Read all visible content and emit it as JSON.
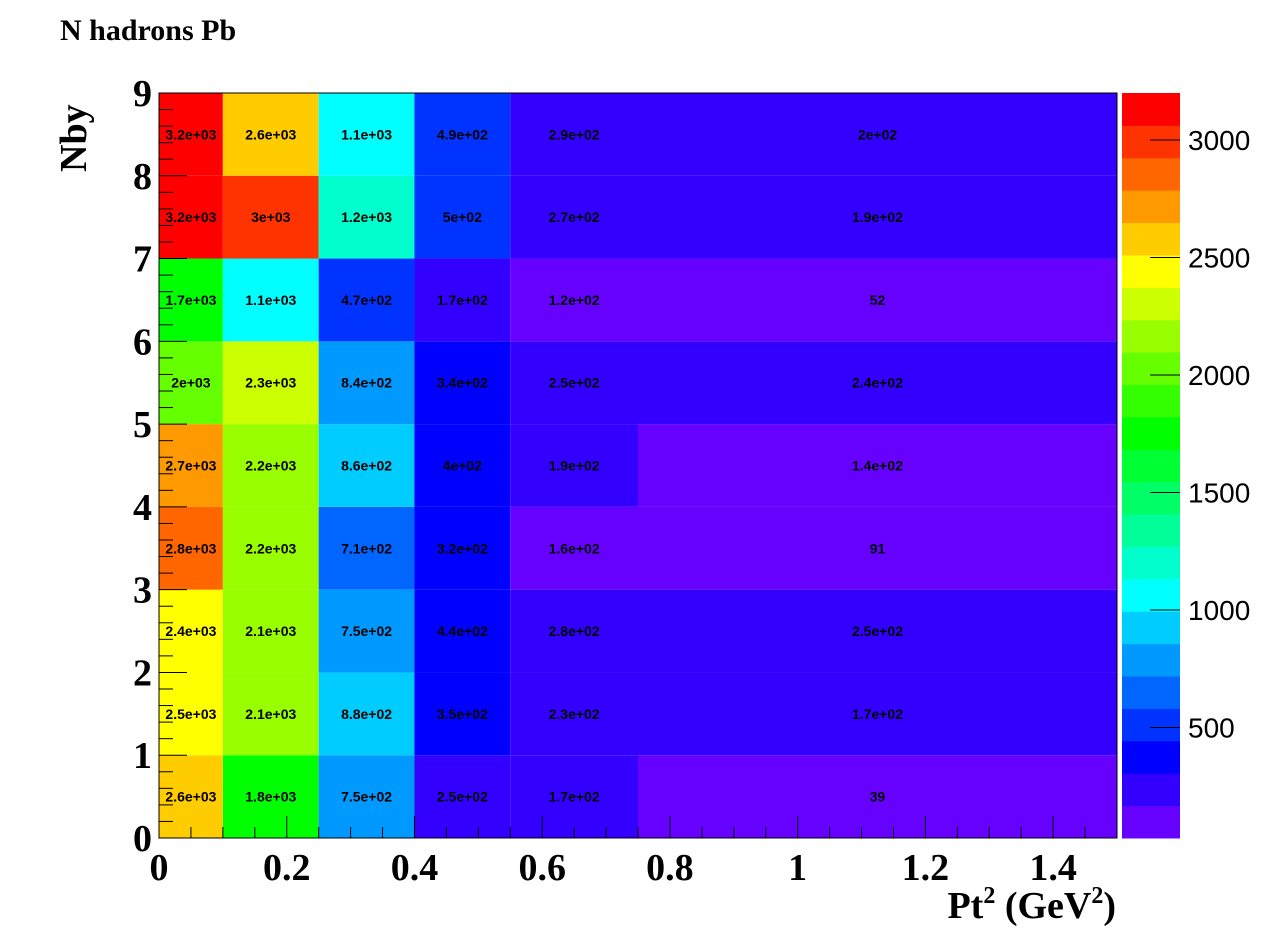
{
  "chart_data": {
    "type": "heatmap",
    "title": "N hadrons Pb",
    "xlabel": "Pt² (GeV²)",
    "xlabel_main": "Pt",
    "xlabel_sup1": "2",
    "xlabel_mid": " (GeV",
    "xlabel_sup2": "2",
    "xlabel_end": ")",
    "ylabel": "Nby",
    "x_edges": [
      0,
      0.1,
      0.25,
      0.4,
      0.55,
      0.75,
      1.5
    ],
    "y_edges": [
      0,
      1,
      2,
      3,
      4,
      5,
      6,
      7,
      8,
      9
    ],
    "xlim": [
      0,
      1.5
    ],
    "ylim": [
      0,
      9
    ],
    "x_ticks": [
      "0",
      "0.2",
      "0.4",
      "0.6",
      "0.8",
      "1",
      "1.2",
      "1.4"
    ],
    "x_tick_values": [
      0,
      0.2,
      0.4,
      0.6,
      0.8,
      1,
      1.2,
      1.4
    ],
    "y_ticks": [
      "0",
      "1",
      "2",
      "3",
      "4",
      "5",
      "6",
      "7",
      "8",
      "9"
    ],
    "y_tick_values": [
      0,
      1,
      2,
      3,
      4,
      5,
      6,
      7,
      8,
      9
    ],
    "zlim": [
      30,
      3200
    ],
    "colorbar_ticks": [
      "500",
      "1000",
      "1500",
      "2000",
      "2500",
      "3000"
    ],
    "colorbar_tick_values": [
      500,
      1000,
      1500,
      2000,
      2500,
      3000
    ],
    "palette": [
      "#6600ff",
      "#3300ff",
      "#0000ff",
      "#0033ff",
      "#0066ff",
      "#0099ff",
      "#00ccff",
      "#00ffff",
      "#00ffcc",
      "#00ff99",
      "#00ff66",
      "#00ff33",
      "#00ff00",
      "#33ff00",
      "#66ff00",
      "#99ff00",
      "#ccff00",
      "#ffff00",
      "#ffcc00",
      "#ff9900",
      "#ff6600",
      "#ff3300",
      "#ff0000"
    ],
    "rows": [
      {
        "y_bin": "0-1",
        "labels": [
          "2.6e+03",
          "1.8e+03",
          "7.5e+02",
          "2.5e+02",
          "1.7e+02",
          "39"
        ],
        "values": [
          2600,
          1800,
          750,
          250,
          170,
          39
        ]
      },
      {
        "y_bin": "1-2",
        "labels": [
          "2.5e+03",
          "2.1e+03",
          "8.8e+02",
          "3.5e+02",
          "2.3e+02",
          "1.7e+02"
        ],
        "values": [
          2500,
          2100,
          880,
          350,
          230,
          170
        ]
      },
      {
        "y_bin": "2-3",
        "labels": [
          "2.4e+03",
          "2.1e+03",
          "7.5e+02",
          "4.4e+02",
          "2.8e+02",
          "2.5e+02"
        ],
        "values": [
          2400,
          2100,
          750,
          440,
          280,
          250
        ]
      },
      {
        "y_bin": "3-4",
        "labels": [
          "2.8e+03",
          "2.2e+03",
          "7.1e+02",
          "3.2e+02",
          "1.6e+02",
          "91"
        ],
        "values": [
          2800,
          2200,
          710,
          320,
          160,
          91
        ]
      },
      {
        "y_bin": "4-5",
        "labels": [
          "2.7e+03",
          "2.2e+03",
          "8.6e+02",
          "4e+02",
          "1.9e+02",
          "1.4e+02"
        ],
        "values": [
          2700,
          2200,
          860,
          400,
          190,
          140
        ]
      },
      {
        "y_bin": "5-6",
        "labels": [
          "2e+03",
          "2.3e+03",
          "8.4e+02",
          "3.4e+02",
          "2.5e+02",
          "2.4e+02"
        ],
        "values": [
          2000,
          2300,
          840,
          340,
          250,
          240
        ]
      },
      {
        "y_bin": "6-7",
        "labels": [
          "1.7e+03",
          "1.1e+03",
          "4.7e+02",
          "1.7e+02",
          "1.2e+02",
          "52"
        ],
        "values": [
          1700,
          1100,
          470,
          170,
          120,
          52
        ]
      },
      {
        "y_bin": "7-8",
        "labels": [
          "3.2e+03",
          "3e+03",
          "1.2e+03",
          "5e+02",
          "2.7e+02",
          "1.9e+02"
        ],
        "values": [
          3200,
          3000,
          1200,
          500,
          270,
          190
        ]
      },
      {
        "y_bin": "8-9",
        "labels": [
          "3.2e+03",
          "2.6e+03",
          "1.1e+03",
          "4.9e+02",
          "2.9e+02",
          "2e+02"
        ],
        "values": [
          3200,
          2600,
          1100,
          490,
          290,
          200
        ]
      }
    ]
  }
}
